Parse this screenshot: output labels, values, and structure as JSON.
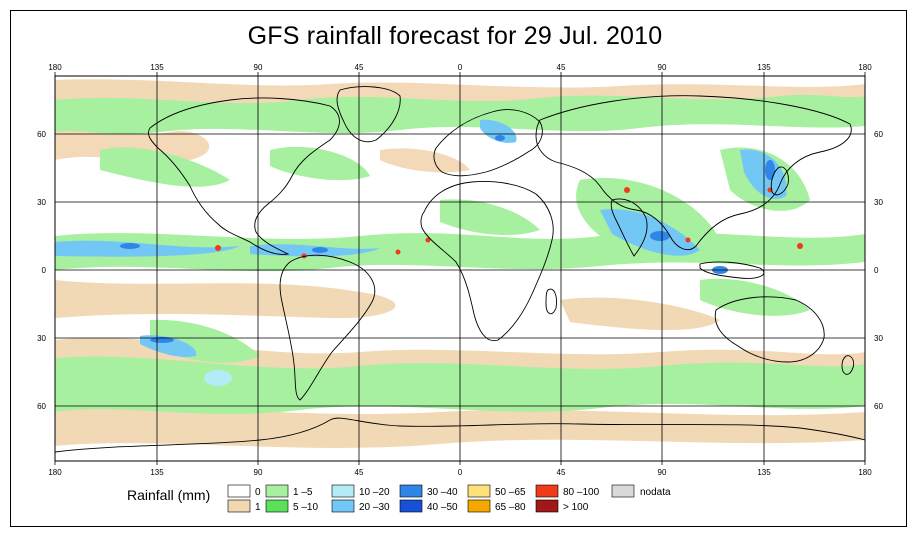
{
  "title": "GFS rainfall forecast for 29 Jul. 2010",
  "lon_labels": [
    "180",
    "135",
    "90",
    "45",
    "0",
    "45",
    "90",
    "135",
    "180"
  ],
  "lat_labels": [
    "60",
    "30",
    "0",
    "30",
    "60"
  ],
  "legend": {
    "title": "Rainfall (mm)",
    "items": [
      {
        "label": "0",
        "color": "#ffffff"
      },
      {
        "label": "1",
        "color": "#f2d7b3"
      },
      {
        "label": "1 –5",
        "color": "#a7f0a0"
      },
      {
        "label": "5 –10",
        "color": "#5ce05c"
      },
      {
        "label": "10 –20",
        "color": "#b4ebf7"
      },
      {
        "label": "20 –30",
        "color": "#72c7f5"
      },
      {
        "label": "30 –40",
        "color": "#2f86e8"
      },
      {
        "label": "40 –50",
        "color": "#1752d6"
      },
      {
        "label": "50 –65",
        "color": "#fde07a"
      },
      {
        "label": "65 –80",
        "color": "#f5a800"
      },
      {
        "label": "80 –100",
        "color": "#ef3b1a"
      },
      {
        "label": "> 100",
        "color": "#a11818"
      },
      {
        "label": "nodata",
        "color": "#d9d9d9"
      }
    ]
  },
  "colors": {
    "ocean": "#ffffff",
    "light_rain": "#a7f0a0",
    "trace": "#f2d7b3",
    "moderate": "#72c7f5",
    "heavy": "#2f86e8",
    "extreme": "#ef3b1a",
    "land_outline": "#000000",
    "antarctica": "#ffffff"
  }
}
